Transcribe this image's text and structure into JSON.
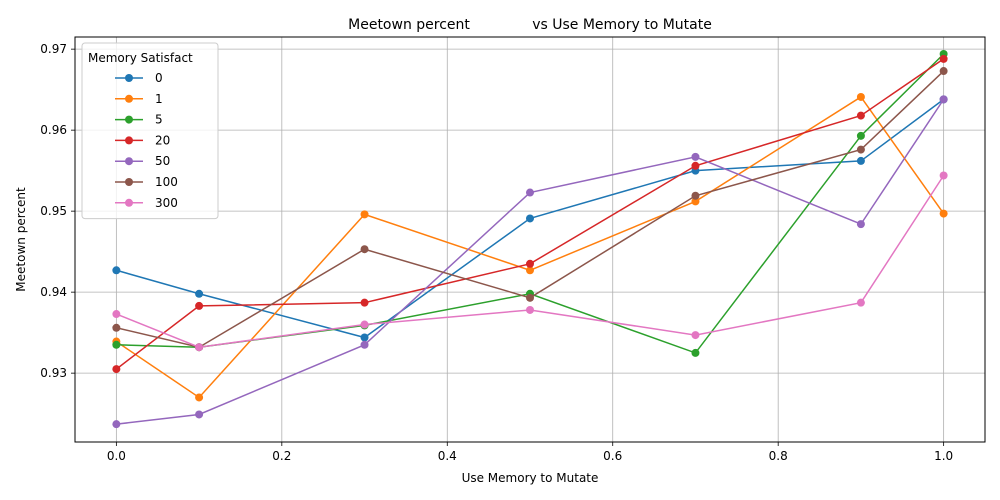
{
  "chart_data": {
    "type": "line",
    "title": "Meetown percent              vs Use Memory to Mutate",
    "xlabel": "Use Memory to Mutate",
    "ylabel": "Meetown percent",
    "xlim": [
      -0.05,
      1.05
    ],
    "ylim": [
      0.9215,
      0.9715
    ],
    "xticks": [
      0.0,
      0.2,
      0.4,
      0.6,
      0.8,
      1.0
    ],
    "xtick_labels": [
      "0.0",
      "0.2",
      "0.4",
      "0.6",
      "0.8",
      "1.0"
    ],
    "yticks": [
      0.93,
      0.94,
      0.95,
      0.96,
      0.97
    ],
    "ytick_labels": [
      "0.93",
      "0.94",
      "0.95",
      "0.96",
      "0.97"
    ],
    "grid": true,
    "legend_title": "Memory Satisfact",
    "legend_position": "upper-left",
    "x": [
      0.0,
      0.1,
      0.3,
      0.5,
      0.7,
      0.9,
      1.0
    ],
    "series": [
      {
        "name": "0",
        "color": "#1f77b4",
        "values": [
          0.9427,
          0.9398,
          0.9344,
          0.9491,
          0.955,
          0.9562,
          0.9638
        ]
      },
      {
        "name": "1",
        "color": "#ff7f0e",
        "values": [
          0.9339,
          0.927,
          0.9496,
          0.9427,
          0.9512,
          0.9641,
          0.9497
        ]
      },
      {
        "name": "5",
        "color": "#2ca02c",
        "values": [
          0.9335,
          0.9332,
          0.9359,
          0.9398,
          0.9325,
          0.9593,
          0.9694
        ]
      },
      {
        "name": "20",
        "color": "#d62728",
        "values": [
          0.9305,
          0.9383,
          0.9387,
          0.9435,
          0.9556,
          0.9618,
          0.9688
        ]
      },
      {
        "name": "50",
        "color": "#9467bd",
        "values": [
          0.9237,
          0.9249,
          0.9335,
          0.9523,
          0.9567,
          0.9484,
          0.9638
        ]
      },
      {
        "name": "100",
        "color": "#8c564b",
        "values": [
          0.9356,
          0.9332,
          0.9453,
          0.9393,
          0.9519,
          0.9576,
          0.9673
        ]
      },
      {
        "name": "300",
        "color": "#e377c2",
        "values": [
          0.9373,
          0.9332,
          0.936,
          0.9378,
          0.9347,
          0.9387,
          0.9544
        ]
      }
    ]
  }
}
